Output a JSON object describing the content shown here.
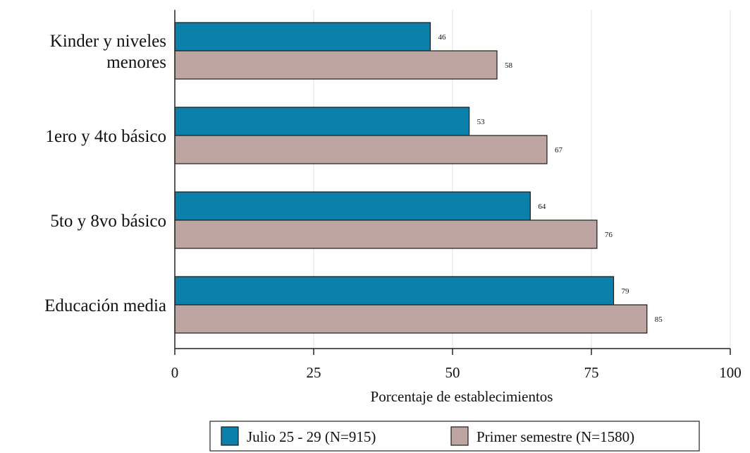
{
  "chart_data": {
    "type": "bar",
    "orientation": "horizontal",
    "categories": [
      [
        "Kinder y niveles",
        "menores"
      ],
      [
        "1ero y 4to básico"
      ],
      [
        "5to y 8vo básico"
      ],
      [
        "Educación media"
      ]
    ],
    "series": [
      {
        "name": "Julio 25 - 29 (N=915)",
        "color": "#0a80aa",
        "values": [
          46,
          53,
          64,
          79
        ],
        "labels": [
          "46",
          "53",
          "64",
          "79"
        ]
      },
      {
        "name": "Primer semestre (N=1580)",
        "color": "#bfa5a1",
        "values": [
          58,
          67,
          76,
          85
        ],
        "labels": [
          "58",
          "67",
          "76",
          "85"
        ]
      }
    ],
    "xlabel": "Porcentaje de establecimientos",
    "xlim": [
      0,
      100
    ],
    "xticks": [
      0,
      25,
      50,
      75,
      100
    ],
    "xtick_labels": [
      "0",
      "25",
      "50",
      "75",
      "100"
    ],
    "grid": true,
    "legend_position": "bottom"
  }
}
